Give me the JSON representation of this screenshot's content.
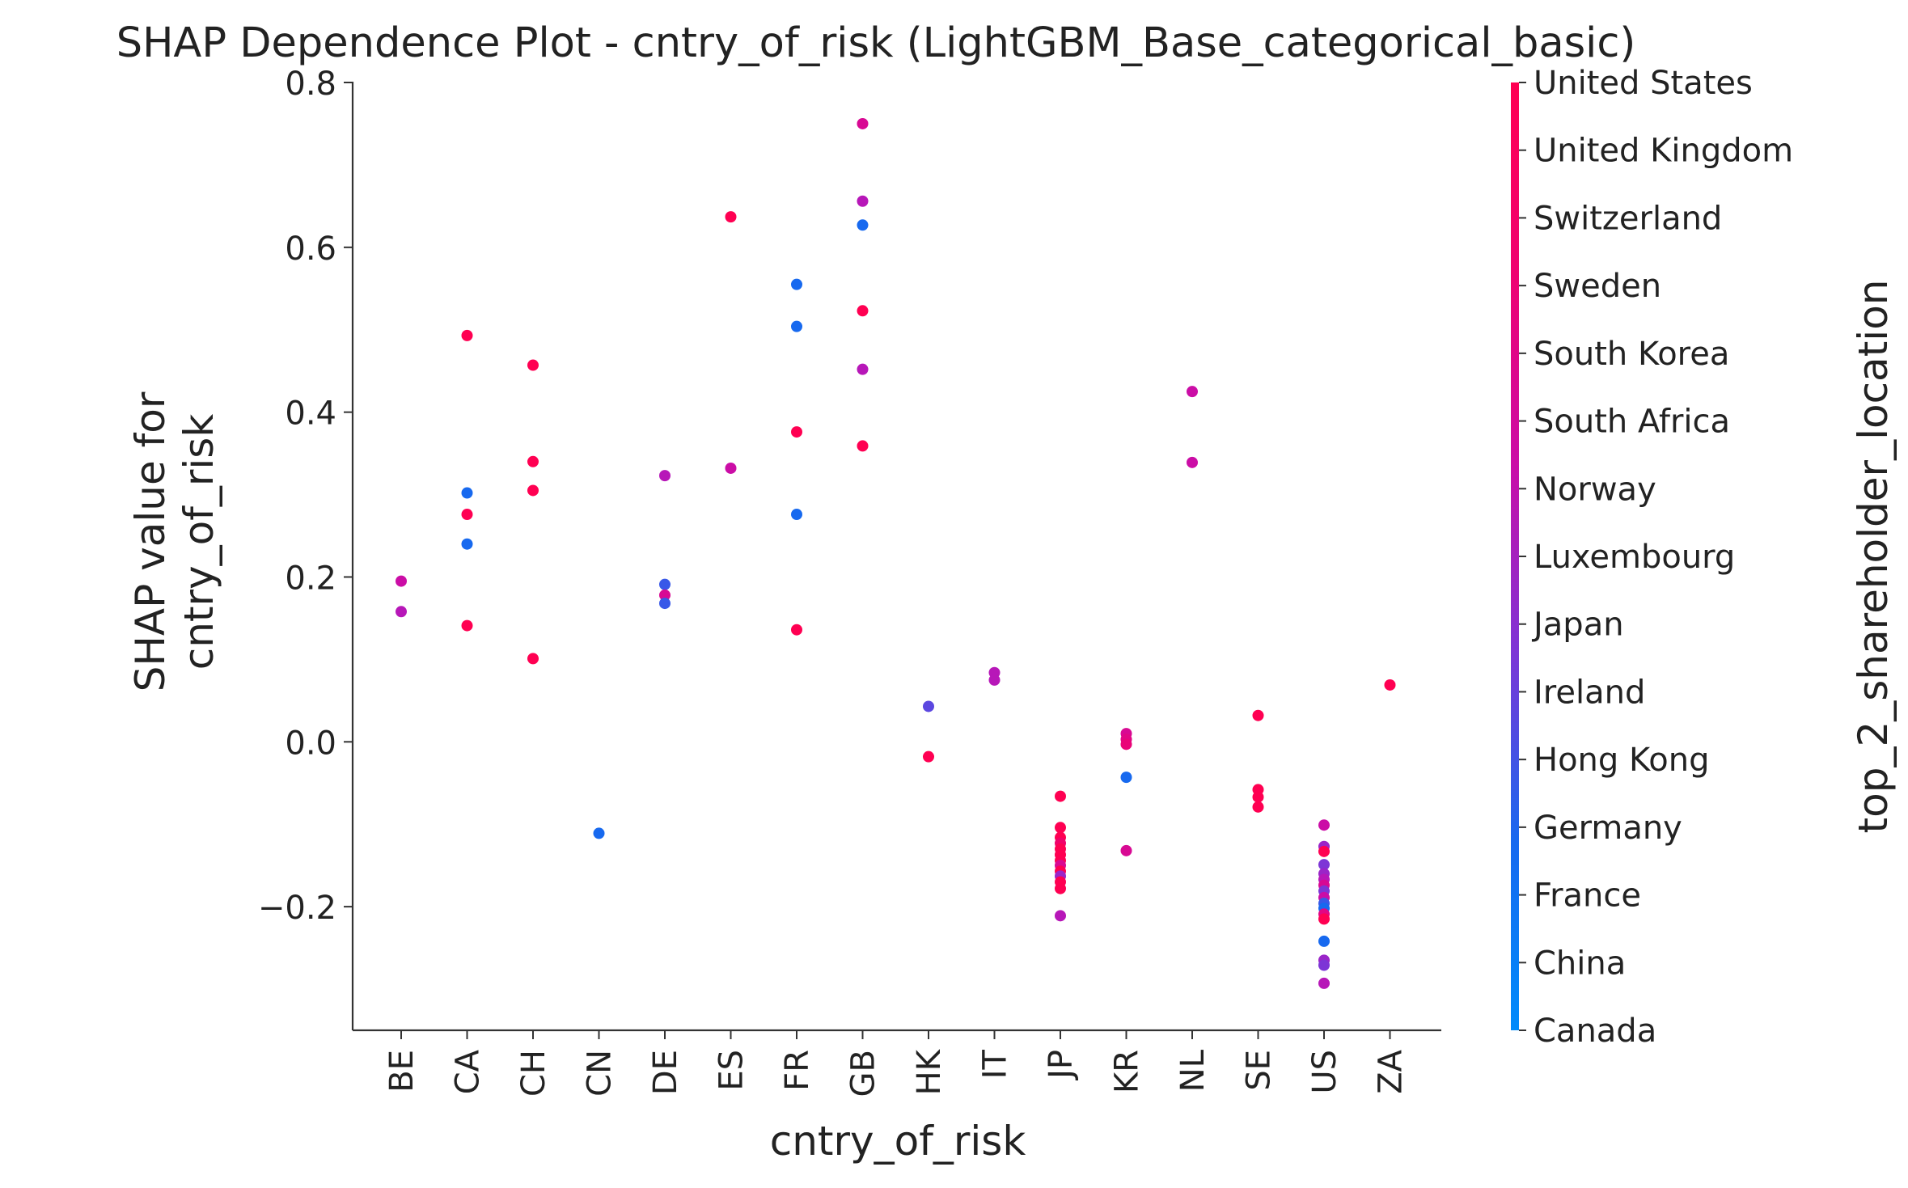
{
  "chart_data": {
    "type": "scatter",
    "title": "SHAP Dependence Plot - cntry_of_risk (LightGBM_Base_categorical_basic)",
    "xlabel": "cntry_of_risk",
    "ylabel_lines": [
      "SHAP value for",
      "cntry_of_risk"
    ],
    "categories": [
      "BE",
      "CA",
      "CH",
      "CN",
      "DE",
      "ES",
      "FR",
      "GB",
      "HK",
      "IT",
      "JP",
      "KR",
      "NL",
      "SE",
      "US",
      "ZA"
    ],
    "ylim": [
      -0.35,
      0.8
    ],
    "yticks": [
      -0.2,
      0.0,
      0.2,
      0.4,
      0.6,
      0.8
    ],
    "ytick_labels": [
      "−0.2",
      "0.0",
      "0.2",
      "0.4",
      "0.6",
      "0.8"
    ],
    "grid": false,
    "colorbar": {
      "label": "top_2_shareholder_location",
      "labels": [
        "United States",
        "United Kingdom",
        "Switzerland",
        "Sweden",
        "South Korea",
        "South Africa",
        "Norway",
        "Luxembourg",
        "Japan",
        "Ireland",
        "Hong Kong",
        "Germany",
        "France",
        "China",
        "Canada"
      ],
      "colors": [
        "#ff0052",
        "#f8005e",
        "#f0026b",
        "#e90478",
        "#e10685",
        "#d80993",
        "#cb0da6",
        "#b717b8",
        "#9a25c8",
        "#7d35d6",
        "#5b47e0",
        "#3858e8",
        "#1769ef",
        "#0477f2",
        "#008bfb"
      ]
    },
    "points": [
      {
        "x": "BE",
        "y": 0.195,
        "c": "Norway"
      },
      {
        "x": "BE",
        "y": 0.158,
        "c": "Luxembourg"
      },
      {
        "x": "CA",
        "y": 0.493,
        "c": "United States"
      },
      {
        "x": "CA",
        "y": 0.302,
        "c": "France"
      },
      {
        "x": "CA",
        "y": 0.276,
        "c": "United States"
      },
      {
        "x": "CA",
        "y": 0.24,
        "c": "France"
      },
      {
        "x": "CA",
        "y": 0.141,
        "c": "United States"
      },
      {
        "x": "CH",
        "y": 0.457,
        "c": "United States"
      },
      {
        "x": "CH",
        "y": 0.34,
        "c": "United States"
      },
      {
        "x": "CH",
        "y": 0.305,
        "c": "United States"
      },
      {
        "x": "CH",
        "y": 0.101,
        "c": "United States"
      },
      {
        "x": "CN",
        "y": -0.111,
        "c": "France"
      },
      {
        "x": "DE",
        "y": 0.323,
        "c": "Luxembourg"
      },
      {
        "x": "DE",
        "y": 0.191,
        "c": "Germany"
      },
      {
        "x": "DE",
        "y": 0.178,
        "c": "South Africa"
      },
      {
        "x": "DE",
        "y": 0.168,
        "c": "Germany"
      },
      {
        "x": "ES",
        "y": 0.637,
        "c": "United States"
      },
      {
        "x": "ES",
        "y": 0.332,
        "c": "Norway"
      },
      {
        "x": "FR",
        "y": 0.555,
        "c": "France"
      },
      {
        "x": "FR",
        "y": 0.504,
        "c": "France"
      },
      {
        "x": "FR",
        "y": 0.376,
        "c": "United States"
      },
      {
        "x": "FR",
        "y": 0.276,
        "c": "France"
      },
      {
        "x": "FR",
        "y": 0.136,
        "c": "United States"
      },
      {
        "x": "GB",
        "y": 0.75,
        "c": "South Africa"
      },
      {
        "x": "GB",
        "y": 0.656,
        "c": "Luxembourg"
      },
      {
        "x": "GB",
        "y": 0.627,
        "c": "France"
      },
      {
        "x": "GB",
        "y": 0.523,
        "c": "United States"
      },
      {
        "x": "GB",
        "y": 0.452,
        "c": "Luxembourg"
      },
      {
        "x": "GB",
        "y": 0.359,
        "c": "United States"
      },
      {
        "x": "HK",
        "y": 0.043,
        "c": "Hong Kong"
      },
      {
        "x": "HK",
        "y": -0.018,
        "c": "United States"
      },
      {
        "x": "IT",
        "y": 0.084,
        "c": "Luxembourg"
      },
      {
        "x": "IT",
        "y": 0.075,
        "c": "Luxembourg"
      },
      {
        "x": "JP",
        "y": -0.066,
        "c": "United States"
      },
      {
        "x": "JP",
        "y": -0.104,
        "c": "United States"
      },
      {
        "x": "JP",
        "y": -0.116,
        "c": "United States"
      },
      {
        "x": "JP",
        "y": -0.123,
        "c": "Switzerland"
      },
      {
        "x": "JP",
        "y": -0.13,
        "c": "United States"
      },
      {
        "x": "JP",
        "y": -0.137,
        "c": "United States"
      },
      {
        "x": "JP",
        "y": -0.144,
        "c": "United States"
      },
      {
        "x": "JP",
        "y": -0.15,
        "c": "South Africa"
      },
      {
        "x": "JP",
        "y": -0.157,
        "c": "United States"
      },
      {
        "x": "JP",
        "y": -0.163,
        "c": "Japan"
      },
      {
        "x": "JP",
        "y": -0.17,
        "c": "United States"
      },
      {
        "x": "JP",
        "y": -0.178,
        "c": "United States"
      },
      {
        "x": "JP",
        "y": -0.211,
        "c": "Luxembourg"
      },
      {
        "x": "KR",
        "y": 0.01,
        "c": "South Africa"
      },
      {
        "x": "KR",
        "y": 0.003,
        "c": "South Korea"
      },
      {
        "x": "KR",
        "y": -0.003,
        "c": "Sweden"
      },
      {
        "x": "KR",
        "y": -0.043,
        "c": "France"
      },
      {
        "x": "KR",
        "y": -0.132,
        "c": "South Africa"
      },
      {
        "x": "NL",
        "y": 0.425,
        "c": "Norway"
      },
      {
        "x": "NL",
        "y": 0.339,
        "c": "Norway"
      },
      {
        "x": "SE",
        "y": 0.032,
        "c": "United States"
      },
      {
        "x": "SE",
        "y": -0.058,
        "c": "United States"
      },
      {
        "x": "SE",
        "y": -0.067,
        "c": "United States"
      },
      {
        "x": "SE",
        "y": -0.079,
        "c": "United States"
      },
      {
        "x": "US",
        "y": -0.101,
        "c": "Norway"
      },
      {
        "x": "US",
        "y": -0.127,
        "c": "Japan"
      },
      {
        "x": "US",
        "y": -0.133,
        "c": "United States"
      },
      {
        "x": "US",
        "y": -0.149,
        "c": "Ireland"
      },
      {
        "x": "US",
        "y": -0.16,
        "c": "Japan"
      },
      {
        "x": "US",
        "y": -0.167,
        "c": "Luxembourg"
      },
      {
        "x": "US",
        "y": -0.174,
        "c": "South Africa"
      },
      {
        "x": "US",
        "y": -0.181,
        "c": "Ireland"
      },
      {
        "x": "US",
        "y": -0.189,
        "c": "Norway"
      },
      {
        "x": "US",
        "y": -0.196,
        "c": "Germany"
      },
      {
        "x": "US",
        "y": -0.202,
        "c": "France"
      },
      {
        "x": "US",
        "y": -0.209,
        "c": "South Korea"
      },
      {
        "x": "US",
        "y": -0.215,
        "c": "United States"
      },
      {
        "x": "US",
        "y": -0.242,
        "c": "France"
      },
      {
        "x": "US",
        "y": -0.265,
        "c": "Japan"
      },
      {
        "x": "US",
        "y": -0.271,
        "c": "Ireland"
      },
      {
        "x": "US",
        "y": -0.293,
        "c": "Luxembourg"
      },
      {
        "x": "ZA",
        "y": 0.069,
        "c": "United States"
      }
    ]
  }
}
